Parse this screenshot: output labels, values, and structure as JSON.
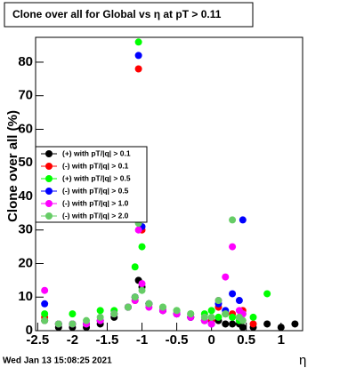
{
  "chart_data": {
    "type": "scatter",
    "title": "Clone  over all for Global vs  η at pT > 0.11",
    "y_label": "Clone  over all (%)",
    "x_label": "η",
    "timestamp": "Wed Jan 13 15:08:25 2021",
    "x": [
      -2.4,
      -2.2,
      -2.0,
      -1.8,
      -1.6,
      -1.4,
      -1.2,
      -1.1,
      -1.05,
      -1.0,
      -0.9,
      -0.7,
      -0.5,
      -0.3,
      -0.1,
      0.0,
      0.1,
      0.2,
      0.3,
      0.4,
      0.45,
      0.6,
      0.8,
      1.0,
      1.2
    ],
    "series": [
      {
        "name": "(+) with pT/|q| > 0.1",
        "color": "#000000",
        "values": [
          3,
          1,
          1,
          1,
          2,
          4,
          7,
          10,
          15,
          13,
          8,
          6,
          5,
          4,
          3,
          3,
          3,
          2,
          2,
          2,
          1,
          1,
          2,
          1,
          2
        ]
      },
      {
        "name": "(-) with pT/|q| > 0.1",
        "color": "#ff0000",
        "values": [
          4,
          2,
          2,
          2,
          3,
          5,
          7,
          9,
          78,
          30,
          8,
          6,
          5,
          4,
          3,
          3,
          7,
          5,
          5,
          4,
          6,
          2,
          null,
          null,
          null
        ]
      },
      {
        "name": "(+) with pT/|q| > 0.5",
        "color": "#00ff00",
        "values": [
          5,
          2,
          5,
          2,
          6,
          6,
          7,
          19,
          86,
          25,
          8,
          7,
          6,
          5,
          5,
          6,
          4,
          5,
          4,
          3,
          5,
          4,
          11,
          null,
          null
        ]
      },
      {
        "name": "(-) with pT/|q| > 0.5",
        "color": "#0000ff",
        "values": [
          8,
          2,
          2,
          2,
          3,
          5,
          7,
          10,
          82,
          31,
          8,
          6,
          5,
          4,
          3,
          2,
          8,
          6,
          11,
          9,
          33,
          null,
          null,
          null,
          null
        ]
      },
      {
        "name": "(-) with pT/|q| > 1.0",
        "color": "#ff00ff",
        "values": [
          12,
          2,
          2,
          2,
          3,
          5,
          7,
          9,
          30,
          14,
          7,
          6,
          5,
          4,
          3,
          2,
          9,
          16,
          25,
          6,
          5,
          null,
          null,
          null,
          null
        ]
      },
      {
        "name": "(-) with pT/|q| > 2.0",
        "color": "#66cc66",
        "values": [
          3,
          2,
          2,
          3,
          4,
          5,
          7,
          10,
          32,
          12,
          8,
          7,
          6,
          5,
          4,
          4,
          9,
          5,
          33,
          4,
          3,
          null,
          null,
          null,
          null
        ]
      }
    ],
    "xlim": [
      -2.53,
      1.31
    ],
    "ylim": [
      0,
      87.4
    ],
    "xticks": [
      -2.5,
      -2,
      -1.5,
      -1,
      -0.5,
      0,
      0.5,
      1
    ],
    "yticks": [
      0,
      10,
      20,
      30,
      40,
      50,
      60,
      70,
      80
    ]
  }
}
